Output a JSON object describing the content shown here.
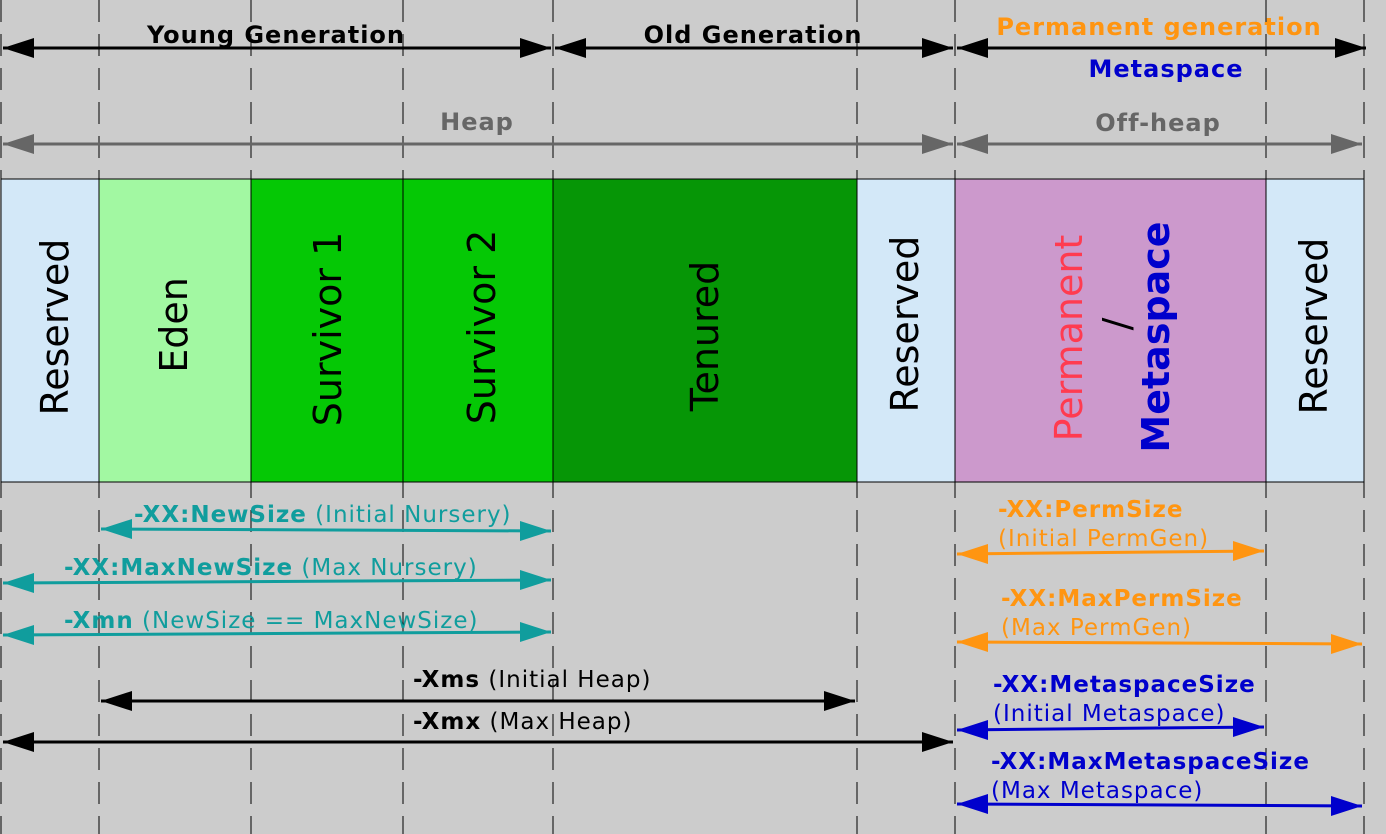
{
  "colors": {
    "background": "#cccccc",
    "black": "#000000",
    "gray": "#666666",
    "teal": "#109d9d",
    "orange": "#ff9511",
    "blue": "#0000cc",
    "red": "#ff3b50",
    "reserved_fill": "#d3e8f8",
    "eden_fill": "#a2f8a2",
    "survivor_fill": "#05c805",
    "tenured_fill": "#069606",
    "permanent_fill": "#cc99cc"
  },
  "headers": {
    "young_generation": "Young Generation",
    "old_generation": "Old Generation",
    "permanent_generation": "Permanent generation",
    "metaspace": "Metaspace",
    "heap": "Heap",
    "off_heap": "Off-heap"
  },
  "regions": {
    "reserved_1": "Reserved",
    "eden": "Eden",
    "survivor_1": "Survivor 1",
    "survivor_2": "Survivor 2",
    "tenured": "Tenured",
    "reserved_2": "Reserved",
    "permanent": "Permanent",
    "slash": "/",
    "metaspace": "Metaspace",
    "reserved_3": "Reserved"
  },
  "options": {
    "newsize": {
      "flag": "-XX:NewSize",
      "desc": " (Initial Nursery)"
    },
    "maxnewsize": {
      "flag": "-XX:MaxNewSize",
      "desc": " (Max Nursery)"
    },
    "xmn": {
      "flag": "-Xmn",
      "desc": " (NewSize == MaxNewSize)"
    },
    "xms": {
      "flag": "-Xms",
      "desc": " (Initial Heap)"
    },
    "xmx": {
      "flag": "-Xmx",
      "desc": " (Max Heap)"
    },
    "permsize": {
      "flag": "-XX:PermSize",
      "desc": "(Initial PermGen)"
    },
    "maxpermsize": {
      "flag": "-XX:MaxPermSize",
      "desc": "(Max PermGen)"
    },
    "metaspacesize": {
      "flag": "-XX:MetaspaceSize",
      "desc": "(Initial Metaspace)"
    },
    "maxmetaspacesize": {
      "flag": "-XX:MaxMetaspaceSize",
      "desc": "(Max Metaspace)"
    }
  }
}
